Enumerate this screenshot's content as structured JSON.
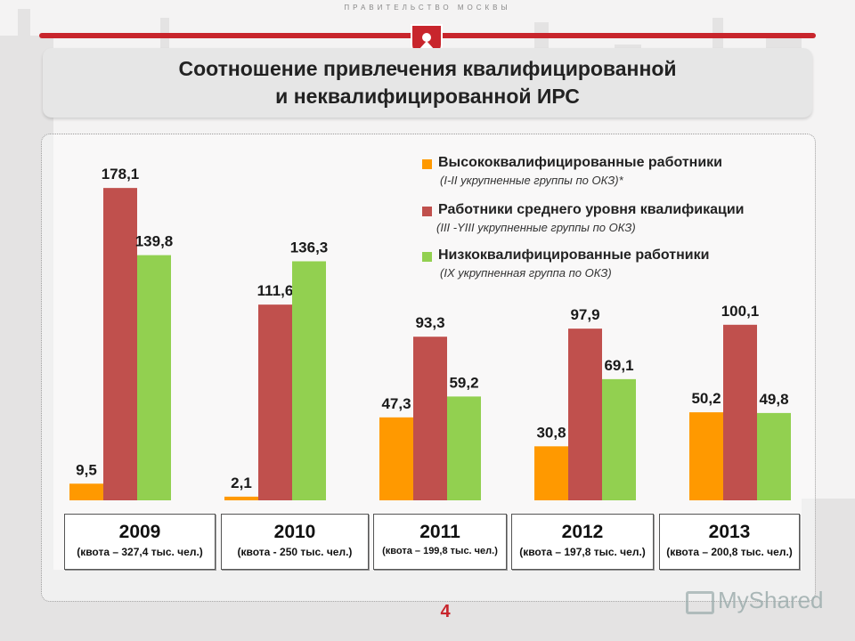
{
  "header": {
    "org": "ПРАВИТЕЛЬСТВО МОСКВЫ",
    "title_line1": "Соотношение привлечения квалифицированной",
    "title_line2": "и неквалифицированной ИРС"
  },
  "colors": {
    "high": "#ff9900",
    "mid": "#c0504d",
    "low": "#92d050",
    "accent": "#c8252c"
  },
  "legend": [
    {
      "name": "Высококвалифицированные работники",
      "desc": "(I-II укрупненные  группы по ОКЗ)*"
    },
    {
      "name": "Работники среднего уровня квалификации",
      "desc": "(III -YIII укрупненные группы по ОКЗ)"
    },
    {
      "name": "Низкоквалифицированные  работники",
      "desc": "(IX укрупненная группа по ОКЗ)"
    }
  ],
  "chart_data": {
    "type": "bar",
    "categories": [
      "2009",
      "2010",
      "2011",
      "2012",
      "2013"
    ],
    "quotas": [
      "(квота – 327,4 тыс. чел.)",
      "(квота - 250 тыс. чел.)",
      "(квота – 199,8 тыс. чел.)",
      "(квота – 197,8 тыс. чел.)",
      "(квота – 200,8 тыс. чел.)"
    ],
    "series": [
      {
        "name": "Высококвалифицированные работники",
        "values": [
          9.5,
          2.1,
          47.3,
          30.8,
          50.2
        ],
        "labels": [
          "9,5",
          "2,1",
          "47,3",
          "30,8",
          "50,2"
        ]
      },
      {
        "name": "Работники среднего уровня квалификации",
        "values": [
          178.1,
          111.6,
          93.3,
          97.9,
          100.1
        ],
        "labels": [
          "178,1",
          "111,6",
          "93,3",
          "97,9",
          "100,1"
        ]
      },
      {
        "name": "Низкоквалифицированные  работники",
        "values": [
          139.8,
          136.3,
          59.2,
          69.1,
          49.8
        ],
        "labels": [
          "139,8",
          "136,3",
          "59,2",
          "69,1",
          "49,8"
        ]
      }
    ],
    "grid": false,
    "legend_position": "top-right"
  },
  "footer": {
    "page_number": "4",
    "watermark": "MyShared"
  }
}
